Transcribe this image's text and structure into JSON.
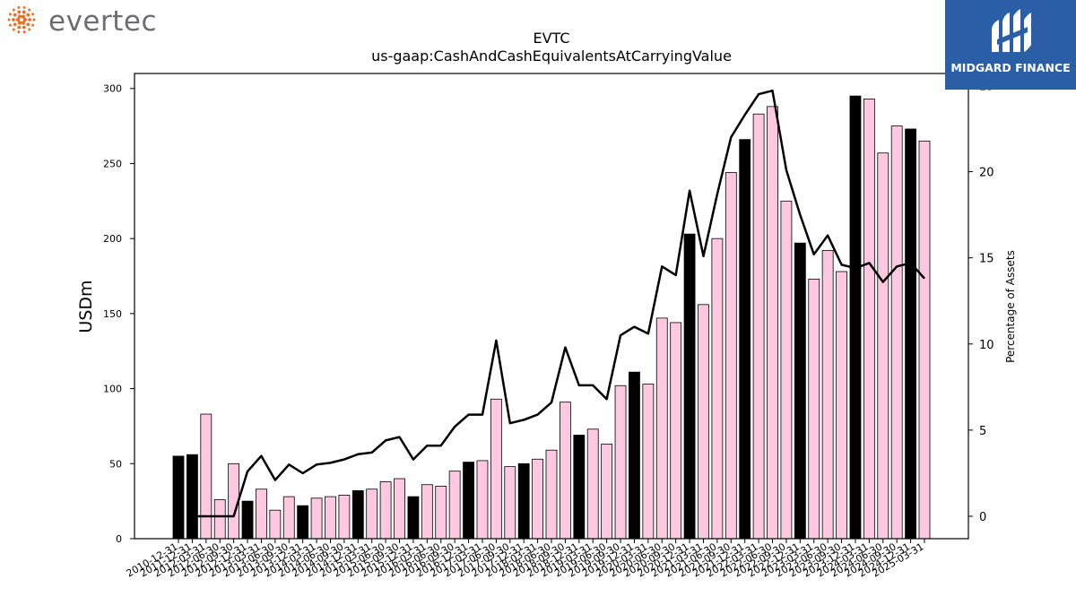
{
  "logos": {
    "left": {
      "text": "evertec",
      "accent_color": "#e8722a"
    },
    "right": {
      "text": "MIDGARD FINANCE",
      "background_color": "#2a5fa8",
      "icon": "midgard-mark-icon"
    }
  },
  "chart_data": {
    "type": "bar",
    "title": "EVTC",
    "subtitle": "us-gaap:CashAndCashEquivalentsAtCarryingValue",
    "ylabel": "USDm",
    "y2label": "Percentage of Assets",
    "ylim": [
      0,
      310
    ],
    "y2lim": [
      -1.3,
      25.7
    ],
    "yticks": [
      0,
      50,
      100,
      150,
      200,
      250,
      300
    ],
    "y2ticks": [
      0,
      5,
      10,
      15,
      20,
      25
    ],
    "grid": false,
    "colors": {
      "annual_bar": "#000000",
      "quarter_bar": "#ffc8e1",
      "line": "#000000"
    },
    "categories": [
      "2010-12-31",
      "2011-12-31",
      "2012-03-31",
      "2012-06-30",
      "2012-09-30",
      "2012-12-31",
      "2013-03-31",
      "2013-06-30",
      "2013-09-30",
      "2013-12-31",
      "2014-03-31",
      "2014-06-30",
      "2014-09-30",
      "2014-12-31",
      "2015-03-31",
      "2015-06-30",
      "2015-09-30",
      "2015-12-31",
      "2016-03-31",
      "2016-06-30",
      "2016-09-30",
      "2016-12-31",
      "2017-03-31",
      "2017-06-30",
      "2017-09-30",
      "2017-12-31",
      "2018-03-31",
      "2018-06-30",
      "2018-09-30",
      "2018-12-31",
      "2019-03-31",
      "2019-06-30",
      "2019-09-30",
      "2019-12-31",
      "2020-03-31",
      "2020-06-30",
      "2020-09-30",
      "2020-12-31",
      "2021-03-31",
      "2021-06-30",
      "2021-09-30",
      "2021-12-31",
      "2022-03-31",
      "2022-06-30",
      "2022-09-30",
      "2022-12-31",
      "2023-03-31",
      "2023-06-30",
      "2023-09-30",
      "2023-12-31",
      "2024-03-31",
      "2024-06-30",
      "2024-09-30",
      "2024-12-31",
      "2025-03-31"
    ],
    "series": [
      {
        "type": "bar",
        "values": [
          55,
          56,
          83,
          26,
          50,
          25,
          33,
          19,
          28,
          22,
          27,
          28,
          29,
          32,
          33,
          38,
          40,
          28,
          36,
          35,
          45,
          51,
          52,
          93,
          48,
          50,
          53,
          59,
          91,
          69,
          73,
          63,
          102,
          111,
          103,
          147,
          144,
          203,
          156,
          200,
          244,
          266,
          283,
          288,
          225,
          197,
          173,
          192,
          178,
          295,
          293,
          257,
          275,
          273,
          265
        ],
        "annual": [
          true,
          true,
          false,
          false,
          false,
          true,
          false,
          false,
          false,
          true,
          false,
          false,
          false,
          true,
          false,
          false,
          false,
          true,
          false,
          false,
          false,
          true,
          false,
          false,
          false,
          true,
          false,
          false,
          false,
          true,
          false,
          false,
          false,
          true,
          false,
          false,
          false,
          true,
          false,
          false,
          false,
          true,
          false,
          false,
          false,
          true,
          false,
          false,
          false,
          true,
          false,
          false,
          false,
          true,
          false
        ]
      },
      {
        "type": "line",
        "axis": "right",
        "values": [
          null,
          0,
          0,
          0,
          0,
          2.6,
          3.5,
          2.1,
          3.0,
          2.5,
          3.0,
          3.1,
          3.3,
          3.6,
          3.7,
          4.4,
          4.6,
          3.3,
          4.1,
          4.1,
          5.2,
          5.9,
          5.9,
          10.2,
          5.4,
          5.6,
          5.9,
          6.6,
          9.8,
          7.6,
          7.6,
          6.8,
          10.5,
          11.0,
          10.6,
          14.5,
          14.0,
          18.9,
          15.1,
          18.7,
          22.0,
          23.3,
          24.5,
          24.7,
          20.1,
          17.5,
          15.2,
          16.3,
          14.6,
          14.4,
          14.7,
          13.6,
          14.5,
          14.7,
          13.8
        ]
      }
    ]
  }
}
